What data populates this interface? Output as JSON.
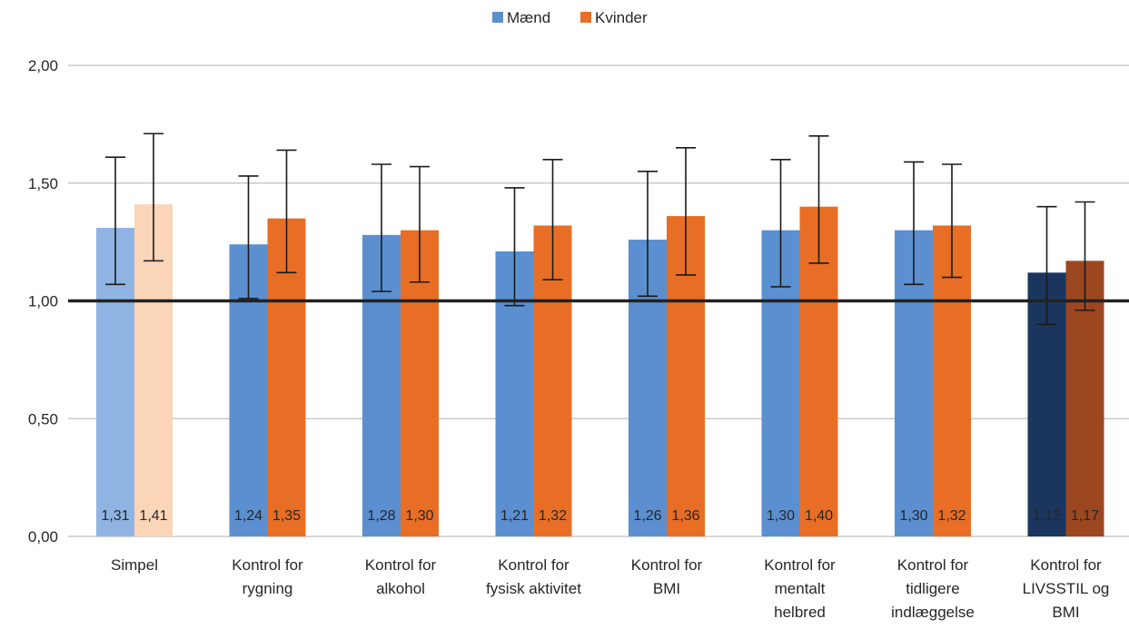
{
  "chart_data": {
    "type": "bar",
    "categories": [
      [
        "Simpel"
      ],
      [
        "Kontrol for",
        "rygning"
      ],
      [
        "Kontrol for",
        "alkohol"
      ],
      [
        "Kontrol for",
        "fysisk aktivitet"
      ],
      [
        "Kontrol for",
        "BMI"
      ],
      [
        "Kontrol for",
        "mentalt",
        "helbred"
      ],
      [
        "Kontrol for",
        "tidligere",
        "indlæggelse"
      ],
      [
        "Kontrol for",
        "LIVSSTIL og",
        "BMI"
      ]
    ],
    "series": [
      {
        "name": "Mænd",
        "color": "#5B8FD0",
        "values": [
          1.31,
          1.24,
          1.28,
          1.21,
          1.26,
          1.3,
          1.3,
          1.12
        ],
        "labels": [
          "1,31",
          "1,24",
          "1,28",
          "1,21",
          "1,26",
          "1,30",
          "1,30",
          "1,12"
        ],
        "err_low": [
          1.07,
          1.01,
          1.04,
          0.98,
          1.02,
          1.06,
          1.07,
          0.9
        ],
        "err_high": [
          1.61,
          1.53,
          1.58,
          1.48,
          1.55,
          1.6,
          1.59,
          1.4
        ],
        "bar_colors": [
          "#8FB4E3",
          "#5B8FD0",
          "#5B8FD0",
          "#5B8FD0",
          "#5B8FD0",
          "#5B8FD0",
          "#5B8FD0",
          "#1B365E"
        ]
      },
      {
        "name": "Kvinder",
        "color": "#E86E25",
        "values": [
          1.41,
          1.35,
          1.3,
          1.32,
          1.36,
          1.4,
          1.32,
          1.17
        ],
        "labels": [
          "1,41",
          "1,35",
          "1,30",
          "1,32",
          "1,36",
          "1,40",
          "1,32",
          "1,17"
        ],
        "err_low": [
          1.17,
          1.12,
          1.08,
          1.09,
          1.11,
          1.16,
          1.1,
          0.96
        ],
        "err_high": [
          1.71,
          1.64,
          1.57,
          1.6,
          1.65,
          1.7,
          1.58,
          1.42
        ],
        "bar_colors": [
          "#FAD5B8",
          "#E86E25",
          "#E86E25",
          "#E86E25",
          "#E86E25",
          "#E86E25",
          "#E86E25",
          "#9C4720"
        ]
      }
    ],
    "ylim": [
      0,
      2
    ],
    "yticks": [
      0,
      0.5,
      1,
      1.5,
      2
    ],
    "ytick_labels": [
      "0,00",
      "0,50",
      "1,00",
      "1,50",
      "2,00"
    ],
    "reference_line": 1.0,
    "grid": true,
    "legend": "top-center",
    "title": "",
    "xlabel": "",
    "ylabel": ""
  }
}
